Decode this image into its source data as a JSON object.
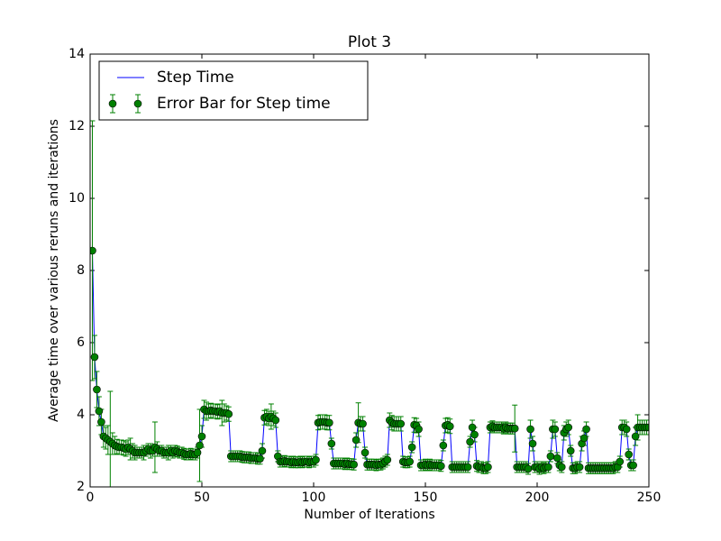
{
  "chart_data": {
    "type": "errorbar",
    "title": "Plot 3",
    "x_label": "Number of Iterations",
    "y_label": "Average time over various reruns and iterations",
    "xlim": [
      0,
      250
    ],
    "xticks": [
      0,
      50,
      100,
      150,
      200,
      250
    ],
    "ylim": [
      2,
      14
    ],
    "yticks": [
      2,
      4,
      6,
      8,
      10,
      12,
      14
    ],
    "legend": "upper left",
    "x": [
      1,
      2,
      3,
      4,
      5,
      6,
      7,
      8,
      9,
      10,
      11,
      12,
      13,
      14,
      15,
      16,
      17,
      18,
      19,
      20,
      21,
      22,
      23,
      24,
      25,
      26,
      27,
      28,
      29,
      30,
      31,
      32,
      33,
      34,
      35,
      36,
      37,
      38,
      39,
      40,
      41,
      42,
      43,
      44,
      45,
      46,
      47,
      48,
      49,
      50,
      51,
      52,
      53,
      54,
      55,
      56,
      57,
      58,
      59,
      60,
      61,
      62,
      63,
      64,
      65,
      66,
      67,
      68,
      69,
      70,
      71,
      72,
      73,
      74,
      75,
      76,
      77,
      78,
      79,
      80,
      81,
      82,
      83,
      84,
      85,
      86,
      87,
      88,
      89,
      90,
      91,
      92,
      93,
      94,
      95,
      96,
      97,
      98,
      99,
      100,
      101,
      102,
      103,
      104,
      105,
      106,
      107,
      108,
      109,
      110,
      111,
      112,
      113,
      114,
      115,
      116,
      117,
      118,
      119,
      120,
      121,
      122,
      123,
      124,
      125,
      126,
      127,
      128,
      129,
      130,
      131,
      132,
      133,
      134,
      135,
      136,
      137,
      138,
      139,
      140,
      141,
      142,
      143,
      144,
      145,
      146,
      147,
      148,
      149,
      150,
      151,
      152,
      153,
      154,
      155,
      156,
      157,
      158,
      159,
      160,
      161,
      162,
      163,
      164,
      165,
      166,
      167,
      168,
      169,
      170,
      171,
      172,
      173,
      174,
      175,
      176,
      177,
      178,
      179,
      180,
      181,
      182,
      183,
      184,
      185,
      186,
      187,
      188,
      189,
      190,
      191,
      192,
      193,
      194,
      195,
      196,
      197,
      198,
      199,
      200,
      201,
      202,
      203,
      204,
      205,
      206,
      207,
      208,
      209,
      210,
      211,
      212,
      213,
      214,
      215,
      216,
      217,
      218,
      219,
      220,
      221,
      222,
      223,
      224,
      225,
      226,
      227,
      228,
      229,
      230,
      231,
      232,
      233,
      234,
      235,
      236,
      237,
      238,
      239,
      240,
      241,
      242,
      243,
      244,
      245,
      246,
      247,
      248,
      249,
      250
    ],
    "series": [
      {
        "name": "Step Time",
        "color": "#0000ff",
        "values": [
          8.55,
          5.6,
          4.7,
          4.1,
          3.8,
          3.4,
          3.35,
          3.3,
          3.25,
          3.2,
          3.15,
          3.12,
          3.1,
          3.1,
          3.08,
          3.05,
          3.1,
          3.05,
          3.0,
          2.95,
          2.95,
          2.95,
          2.95,
          2.95,
          3.0,
          3.05,
          3.0,
          3.0,
          3.1,
          3.05,
          3.0,
          3.0,
          2.95,
          2.95,
          2.95,
          3.0,
          2.95,
          3.0,
          2.98,
          2.95,
          2.95,
          2.92,
          2.9,
          2.9,
          2.92,
          2.9,
          2.9,
          2.95,
          3.15,
          3.4,
          4.15,
          4.1,
          4.1,
          4.12,
          4.1,
          4.1,
          4.08,
          4.1,
          4.05,
          4.05,
          4.05,
          4.02,
          2.85,
          2.85,
          2.85,
          2.85,
          2.85,
          2.83,
          2.82,
          2.82,
          2.82,
          2.8,
          2.8,
          2.8,
          2.78,
          2.78,
          3.0,
          3.92,
          3.95,
          3.9,
          3.95,
          3.9,
          3.85,
          2.85,
          2.7,
          2.7,
          2.72,
          2.7,
          2.7,
          2.68,
          2.7,
          2.68,
          2.68,
          2.7,
          2.68,
          2.7,
          2.7,
          2.68,
          2.7,
          2.7,
          2.75,
          3.78,
          3.8,
          3.8,
          3.8,
          3.78,
          3.78,
          3.2,
          2.65,
          2.65,
          2.65,
          2.65,
          2.65,
          2.63,
          2.65,
          2.63,
          2.63,
          2.62,
          3.3,
          3.78,
          3.75,
          3.75,
          2.95,
          2.62,
          2.62,
          2.62,
          2.62,
          2.6,
          2.62,
          2.62,
          2.65,
          2.7,
          2.75,
          3.85,
          3.78,
          3.75,
          3.75,
          3.75,
          3.75,
          2.7,
          2.68,
          2.68,
          2.7,
          3.1,
          3.72,
          3.7,
          3.6,
          2.6,
          2.6,
          2.62,
          2.6,
          2.62,
          2.6,
          2.6,
          2.6,
          2.6,
          2.58,
          3.15,
          3.7,
          3.72,
          3.68,
          2.55,
          2.55,
          2.55,
          2.55,
          2.55,
          2.55,
          2.55,
          2.55,
          3.25,
          3.65,
          3.45,
          2.58,
          2.55,
          2.55,
          2.52,
          2.52,
          2.55,
          3.65,
          3.68,
          3.65,
          3.65,
          3.65,
          3.65,
          3.62,
          3.65,
          3.62,
          3.62,
          3.62,
          3.62,
          2.55,
          2.55,
          2.55,
          2.55,
          2.55,
          2.5,
          3.6,
          3.2,
          2.55,
          2.55,
          2.5,
          2.55,
          2.52,
          2.55,
          2.55,
          2.85,
          3.6,
          3.6,
          2.8,
          2.6,
          2.55,
          3.5,
          3.6,
          3.65,
          3.0,
          2.52,
          2.52,
          2.55,
          2.55,
          3.2,
          3.35,
          3.6,
          2.52,
          2.52,
          2.52,
          2.52,
          2.52,
          2.52,
          2.52,
          2.52,
          2.52,
          2.52,
          2.52,
          2.52,
          2.55,
          2.55,
          2.7,
          3.65,
          3.65,
          3.6,
          2.9,
          2.6,
          2.6,
          3.4,
          3.65,
          3.65,
          3.65,
          3.65,
          3.65,
          3.65
        ]
      }
    ],
    "error_bars": {
      "name": "Error Bar for Step time",
      "color": "#008000",
      "errors": [
        3.6,
        0.6,
        0.5,
        0.4,
        0.35,
        0.3,
        0.3,
        0.4,
        1.4,
        0.3,
        0.25,
        0.2,
        0.2,
        0.2,
        0.2,
        0.2,
        0.2,
        0.3,
        0.2,
        0.2,
        0.15,
        0.15,
        0.15,
        0.2,
        0.15,
        0.15,
        0.2,
        0.15,
        0.7,
        0.2,
        0.15,
        0.15,
        0.15,
        0.15,
        0.2,
        0.15,
        0.15,
        0.15,
        0.15,
        0.15,
        0.15,
        0.15,
        0.15,
        0.15,
        0.15,
        0.15,
        0.15,
        0.15,
        1.0,
        0.3,
        0.25,
        0.25,
        0.2,
        0.2,
        0.2,
        0.2,
        0.2,
        0.2,
        0.35,
        0.25,
        0.2,
        0.2,
        0.15,
        0.15,
        0.15,
        0.15,
        0.15,
        0.15,
        0.15,
        0.15,
        0.15,
        0.15,
        0.15,
        0.15,
        0.15,
        0.15,
        0.2,
        0.2,
        0.2,
        0.2,
        0.35,
        0.2,
        0.2,
        0.15,
        0.15,
        0.15,
        0.15,
        0.15,
        0.15,
        0.15,
        0.15,
        0.15,
        0.15,
        0.15,
        0.15,
        0.15,
        0.15,
        0.15,
        0.15,
        0.15,
        0.15,
        0.2,
        0.2,
        0.2,
        0.2,
        0.2,
        0.2,
        0.15,
        0.15,
        0.15,
        0.15,
        0.15,
        0.15,
        0.15,
        0.15,
        0.15,
        0.15,
        0.15,
        0.2,
        0.55,
        0.2,
        0.2,
        0.15,
        0.15,
        0.15,
        0.15,
        0.15,
        0.15,
        0.15,
        0.15,
        0.15,
        0.15,
        0.15,
        0.2,
        0.2,
        0.2,
        0.2,
        0.2,
        0.2,
        0.15,
        0.15,
        0.15,
        0.15,
        0.15,
        0.2,
        0.2,
        0.2,
        0.15,
        0.15,
        0.15,
        0.15,
        0.15,
        0.15,
        0.15,
        0.15,
        0.15,
        0.15,
        0.15,
        0.2,
        0.2,
        0.2,
        0.15,
        0.15,
        0.15,
        0.15,
        0.15,
        0.15,
        0.15,
        0.15,
        0.15,
        0.2,
        0.2,
        0.15,
        0.15,
        0.15,
        0.15,
        0.15,
        0.15,
        0.15,
        0.15,
        0.15,
        0.15,
        0.15,
        0.15,
        0.15,
        0.15,
        0.15,
        0.15,
        0.15,
        0.65,
        0.15,
        0.15,
        0.15,
        0.15,
        0.15,
        0.15,
        0.25,
        0.2,
        0.15,
        0.15,
        0.15,
        0.15,
        0.15,
        0.15,
        0.15,
        0.15,
        0.25,
        0.2,
        0.15,
        0.15,
        0.15,
        0.2,
        0.2,
        0.2,
        0.15,
        0.15,
        0.15,
        0.15,
        0.15,
        0.2,
        0.2,
        0.2,
        0.15,
        0.15,
        0.15,
        0.15,
        0.15,
        0.15,
        0.15,
        0.15,
        0.15,
        0.15,
        0.15,
        0.15,
        0.15,
        0.15,
        0.15,
        0.2,
        0.2,
        0.2,
        0.15,
        0.15,
        0.15,
        0.25,
        0.35,
        0.2,
        0.2,
        0.2,
        0.2,
        0.2
      ]
    }
  }
}
